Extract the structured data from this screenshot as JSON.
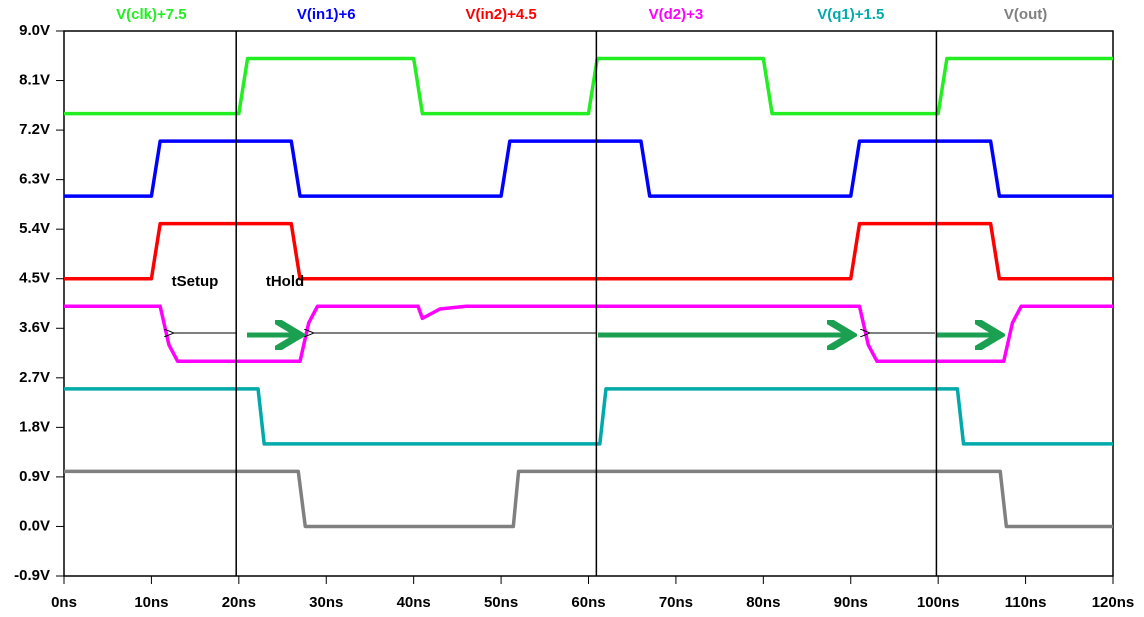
{
  "chart_data": {
    "type": "line",
    "series": [
      {
        "name": "V(clk)+7.5",
        "color": "#22ee22",
        "x": [
          0,
          20,
          21,
          40,
          41,
          60,
          61,
          80,
          81,
          100,
          101,
          120
        ],
        "values": [
          7.5,
          7.5,
          8.5,
          8.5,
          7.5,
          7.5,
          8.5,
          8.5,
          7.5,
          7.5,
          8.5,
          8.5
        ]
      },
      {
        "name": "V(in1)+6",
        "color": "#0000ff",
        "x": [
          0,
          10,
          11,
          26,
          27,
          50,
          51,
          66,
          67,
          90,
          91,
          106,
          107,
          120
        ],
        "values": [
          6,
          6,
          7,
          7,
          6,
          6,
          7,
          7,
          6,
          6,
          7,
          7,
          6,
          6
        ]
      },
      {
        "name": "V(in2)+4.5",
        "color": "#ff0000",
        "x": [
          0,
          10,
          11,
          26,
          27,
          90,
          91,
          106,
          107,
          120
        ],
        "values": [
          4.5,
          4.5,
          5.5,
          5.5,
          4.5,
          4.5,
          5.5,
          5.5,
          4.5,
          4.5
        ]
      },
      {
        "name": "V(d2)+3",
        "color": "#ff00ff",
        "x": [
          0,
          11,
          12,
          13,
          27,
          28,
          29,
          40.5,
          41,
          43,
          46,
          91,
          92,
          93,
          107.5,
          108.5,
          109.5,
          120
        ],
        "values": [
          4,
          4,
          3.3,
          3,
          3,
          3.7,
          4,
          4,
          3.78,
          3.95,
          4,
          4,
          3.3,
          3,
          3,
          3.7,
          4,
          4
        ]
      },
      {
        "name": "V(q1)+1.5",
        "color": "#00aaaa",
        "x": [
          0,
          22.2,
          22.9,
          61.3,
          62,
          102.2,
          102.9,
          120
        ],
        "values": [
          2.5,
          2.5,
          1.5,
          1.5,
          2.5,
          2.5,
          1.5,
          1.5
        ]
      },
      {
        "name": "V(out)",
        "color": "#808080",
        "x": [
          0,
          26.8,
          27.6,
          51.4,
          52,
          107.1,
          107.8,
          120
        ],
        "values": [
          1,
          1,
          0,
          0,
          1,
          1,
          0,
          0
        ]
      }
    ],
    "xlim": [
      0,
      120
    ],
    "xticks": [
      {
        "value": 0,
        "label": "0ns"
      },
      {
        "value": 10,
        "label": "10ns"
      },
      {
        "value": 20,
        "label": "20ns"
      },
      {
        "value": 30,
        "label": "30ns"
      },
      {
        "value": 40,
        "label": "40ns"
      },
      {
        "value": 50,
        "label": "50ns"
      },
      {
        "value": 60,
        "label": "60ns"
      },
      {
        "value": 70,
        "label": "70ns"
      },
      {
        "value": 80,
        "label": "80ns"
      },
      {
        "value": 90,
        "label": "90ns"
      },
      {
        "value": 100,
        "label": "100ns"
      },
      {
        "value": 110,
        "label": "110ns"
      },
      {
        "value": 120,
        "label": "120ns"
      }
    ],
    "ylim": [
      -0.9,
      9.0
    ],
    "yticks": [
      {
        "value": 9.0,
        "label": "9.0V"
      },
      {
        "value": 8.1,
        "label": "8.1V"
      },
      {
        "value": 7.2,
        "label": "7.2V"
      },
      {
        "value": 6.3,
        "label": "6.3V"
      },
      {
        "value": 5.4,
        "label": "5.4V"
      },
      {
        "value": 4.5,
        "label": "4.5V"
      },
      {
        "value": 3.6,
        "label": "3.6V"
      },
      {
        "value": 2.7,
        "label": "2.7V"
      },
      {
        "value": 1.8,
        "label": "1.8V"
      },
      {
        "value": 0.9,
        "label": "0.9V"
      },
      {
        "value": 0.0,
        "label": "0.0V"
      },
      {
        "value": -0.9,
        "label": "-0.9V"
      }
    ],
    "cursors": [
      19.7,
      60.9,
      99.8
    ],
    "annotations": [
      "tSetup",
      "tHold"
    ]
  }
}
